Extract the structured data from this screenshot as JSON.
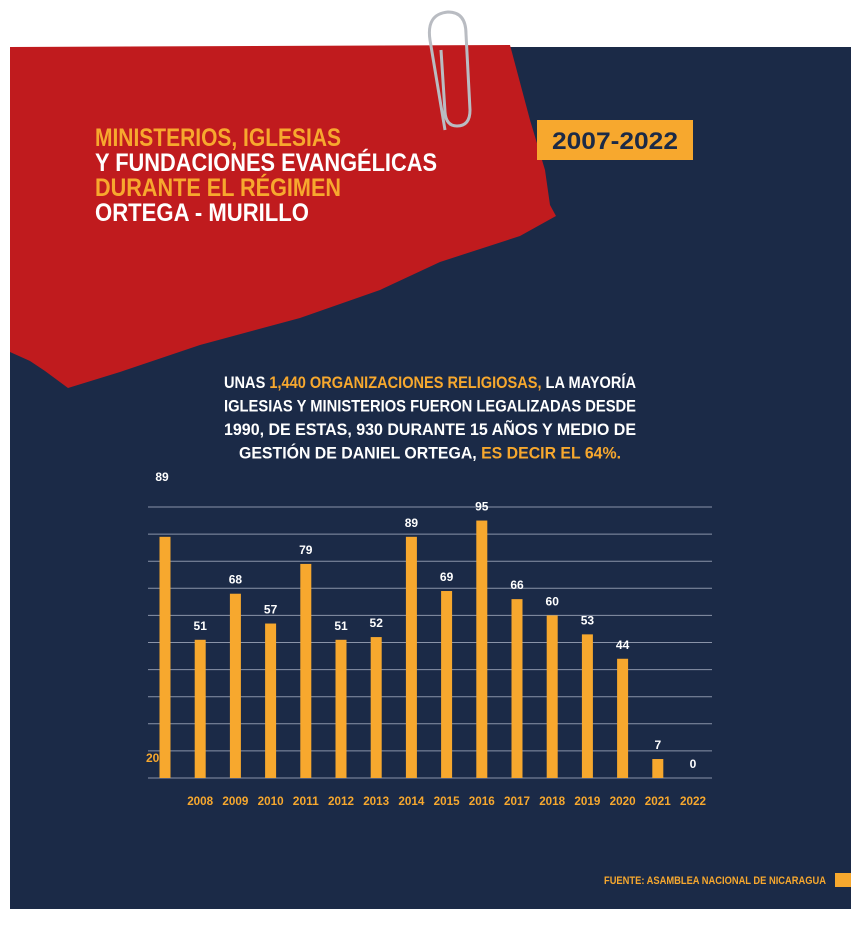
{
  "header": {
    "title_lines": [
      {
        "text": "MINISTERIOS, IGLESIAS",
        "color": "#f7a82e"
      },
      {
        "text": "Y FUNDACIONES EVANGÉLICAS",
        "color": "#ffffff"
      },
      {
        "text": "DURANTE EL RÉGIMEN",
        "color": "#f7a82e"
      },
      {
        "text": "ORTEGA - MURILLO",
        "color": "#ffffff"
      }
    ],
    "badge": "2007-2022"
  },
  "intro": [
    [
      {
        "text": "UNAS ",
        "color": "#ffffff"
      },
      {
        "text": "1,440 ORGANIZACIONES RELIGIOSAS,",
        "color": "#f7a82e"
      },
      {
        "text": " LA MAYORÍA",
        "color": "#ffffff"
      }
    ],
    [
      {
        "text": "IGLESIAS Y MINISTERIOS FUERON LEGALIZADAS DESDE",
        "color": "#ffffff"
      }
    ],
    [
      {
        "text": "1990, DE ESTAS, 930 DURANTE 15 AÑOS Y MEDIO DE",
        "color": "#ffffff"
      }
    ],
    [
      {
        "text": "GESTIÓN DE DANIEL ORTEGA, ",
        "color": "#ffffff"
      },
      {
        "text": "ES DECIR EL 64%.",
        "color": "#f7a82e"
      }
    ]
  ],
  "chart_data": {
    "type": "bar",
    "categories": [
      null,
      "2008",
      "2009",
      "2010",
      "2011",
      "2012",
      "2013",
      "2014",
      "2015",
      "2016",
      "2017",
      "2018",
      "2019",
      "2020",
      "2021",
      "2022"
    ],
    "first_category_fragment": "20",
    "values": [
      89,
      51,
      68,
      57,
      79,
      51,
      52,
      89,
      69,
      95,
      66,
      60,
      53,
      44,
      7,
      0
    ],
    "color": "#f7a82e",
    "ylim": [
      0,
      100
    ],
    "yticks": [
      0,
      10,
      20,
      30,
      40,
      50,
      60,
      70,
      80,
      90,
      100
    ],
    "grid": true
  },
  "footer": {
    "source": "FUENTE: ASAMBLEA NACIONAL DE NICARAGUA"
  }
}
